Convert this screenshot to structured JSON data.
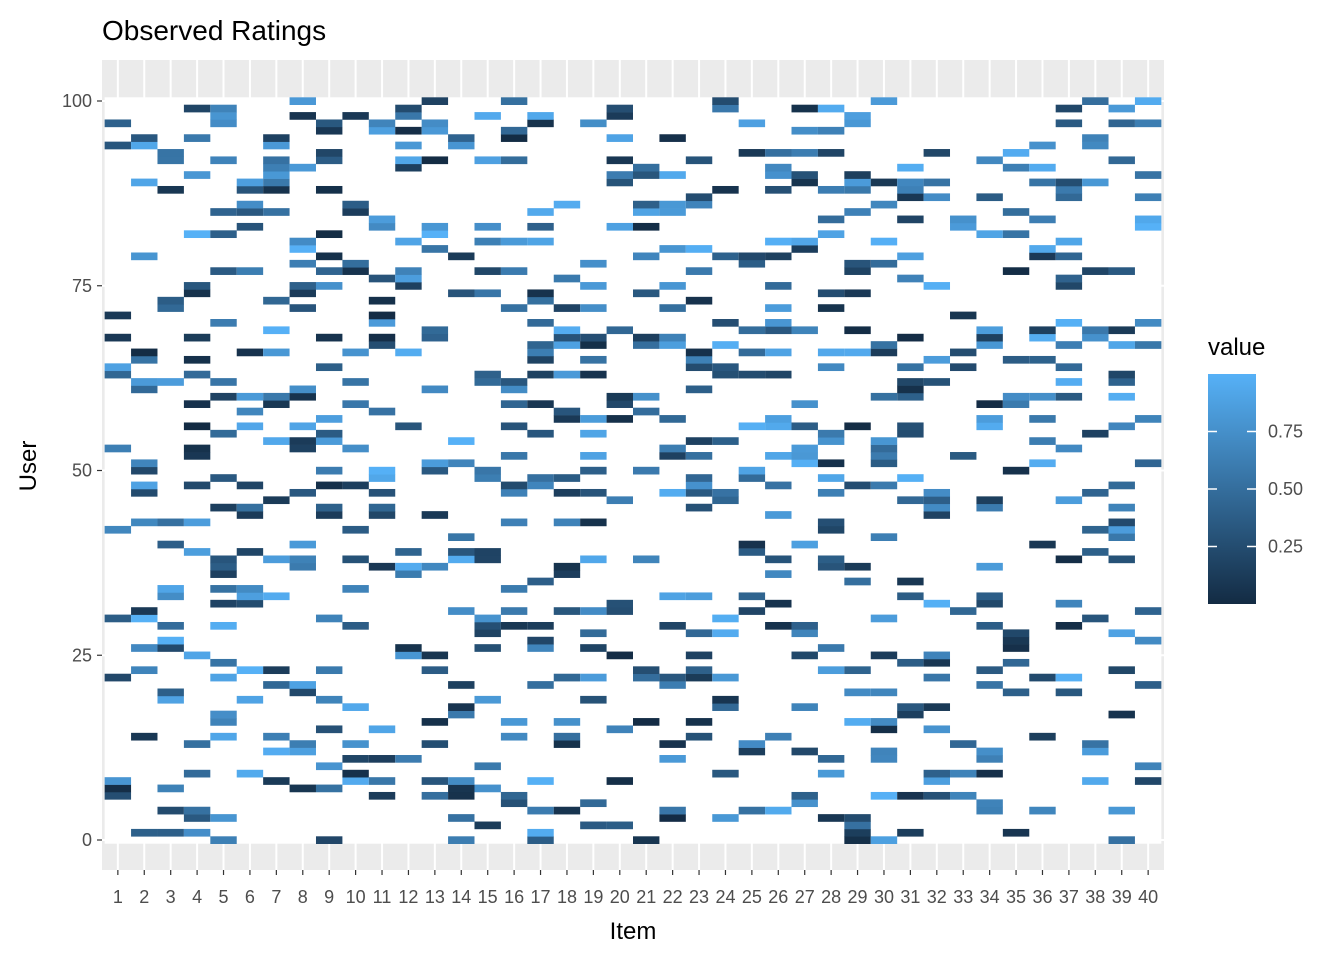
{
  "chart_data": {
    "type": "heatmap",
    "title": "Observed Ratings",
    "xlabel": "Item",
    "ylabel": "User",
    "x_range": [
      1,
      40
    ],
    "y_range": [
      0,
      100
    ],
    "x_ticks": [
      "1",
      "2",
      "3",
      "4",
      "5",
      "6",
      "7",
      "8",
      "9",
      "10",
      "11",
      "12",
      "13",
      "14",
      "15",
      "16",
      "17",
      "18",
      "19",
      "20",
      "21",
      "22",
      "23",
      "24",
      "25",
      "26",
      "27",
      "28",
      "29",
      "30",
      "31",
      "32",
      "33",
      "34",
      "35",
      "36",
      "37",
      "38",
      "39",
      "40"
    ],
    "y_ticks": [
      "0",
      "25",
      "50",
      "75",
      "100"
    ],
    "grid": true,
    "legend": {
      "title": "value",
      "position": "right",
      "breaks": [
        "0.25",
        "0.50",
        "0.75"
      ],
      "break_values": [
        0.25,
        0.5,
        0.75
      ],
      "range": [
        0.0,
        1.0
      ],
      "low_color": "#132B43",
      "high_color": "#56B1F7"
    },
    "missing_fraction": 0.8,
    "value_range": [
      0.0,
      1.0
    ],
    "colors": {
      "panel_background": "#EBEBEB",
      "grid": "#FFFFFF",
      "missing": "#FFFFFF"
    }
  }
}
